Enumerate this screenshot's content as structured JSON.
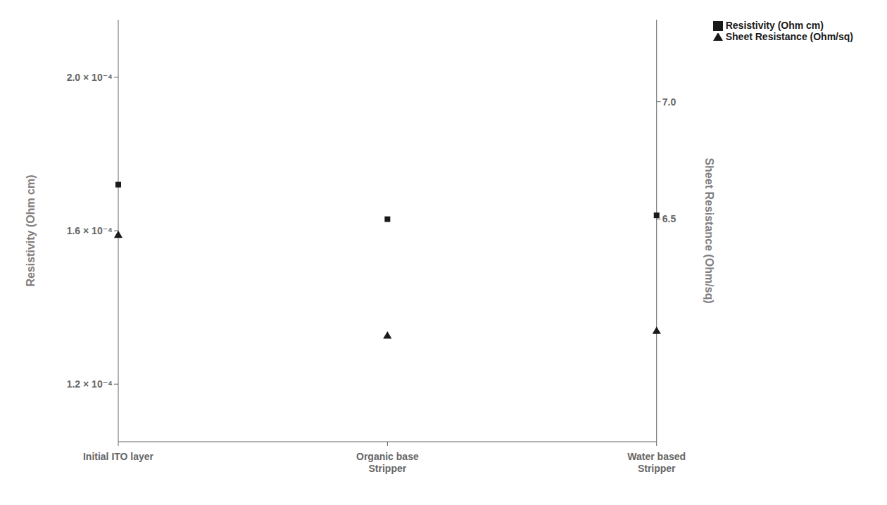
{
  "chart_data": {
    "type": "scatter",
    "categories": [
      "Initial ITO layer",
      "Organic base\nStripper",
      "Water based\nStripper"
    ],
    "ylabel": "Resistivity (Ohm cm)",
    "y2label": "Sheet Resistance (Ohm/sq)",
    "ylim": [
      0.000105,
      0.000215
    ],
    "yticks": [
      {
        "value": 0.00012,
        "label": "1.2 × 10⁻⁴"
      },
      {
        "value": 0.00016,
        "label": "1.6 × 10⁻⁴"
      },
      {
        "value": 0.0002,
        "label": "2.0 × 10⁻⁴"
      }
    ],
    "y2lim": [
      5.55,
      7.35
    ],
    "y2ticks": [
      6.5,
      {
        "value": 7.0,
        "label": "7.0"
      }
    ],
    "series": [
      {
        "name": "Resistivity (Ohm cm)",
        "color": "#1a1a1a",
        "marker": "square",
        "values": [
          0.000172,
          0.000163,
          0.000164
        ]
      },
      {
        "name": "Sheet Resistance (Ohm/sq)",
        "color": "#1a1a1a",
        "marker": "triangle",
        "axis": "y2",
        "values": [
          6.43,
          6.0,
          6.02
        ]
      }
    ],
    "legend": "upper right",
    "grid": false
  }
}
